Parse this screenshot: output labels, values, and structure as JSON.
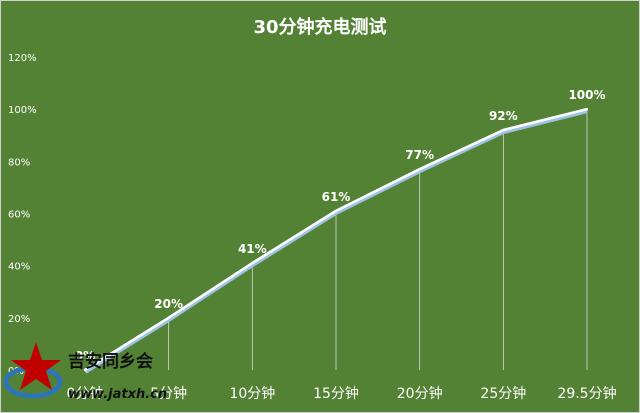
{
  "chart_data": {
    "type": "line",
    "title": "30分钟充电测试",
    "categories": [
      "0分钟",
      "5分钟",
      "10分钟",
      "15分钟",
      "20分钟",
      "25分钟",
      "29.5分钟"
    ],
    "values": [
      0,
      20,
      41,
      61,
      77,
      92,
      100
    ],
    "data_labels": [
      "0%",
      "20%",
      "41%",
      "61%",
      "77%",
      "92%",
      "100%"
    ],
    "yticks": [
      "0%",
      "20%",
      "40%",
      "60%",
      "80%",
      "100%",
      "120%"
    ],
    "ylim": [
      0,
      120
    ],
    "grid": false,
    "legend": "none",
    "colors": {
      "background": "#548235",
      "line": "#ffffff",
      "line_shadow": "#9dc3e6",
      "drop_line": "#d9d9d9",
      "text": "#ffffff"
    }
  },
  "watermark": {
    "name": "吉安同乡会",
    "url": "www.jatxh.cn",
    "colors": {
      "star": "#c00000",
      "globe": "#2e75b6"
    }
  }
}
